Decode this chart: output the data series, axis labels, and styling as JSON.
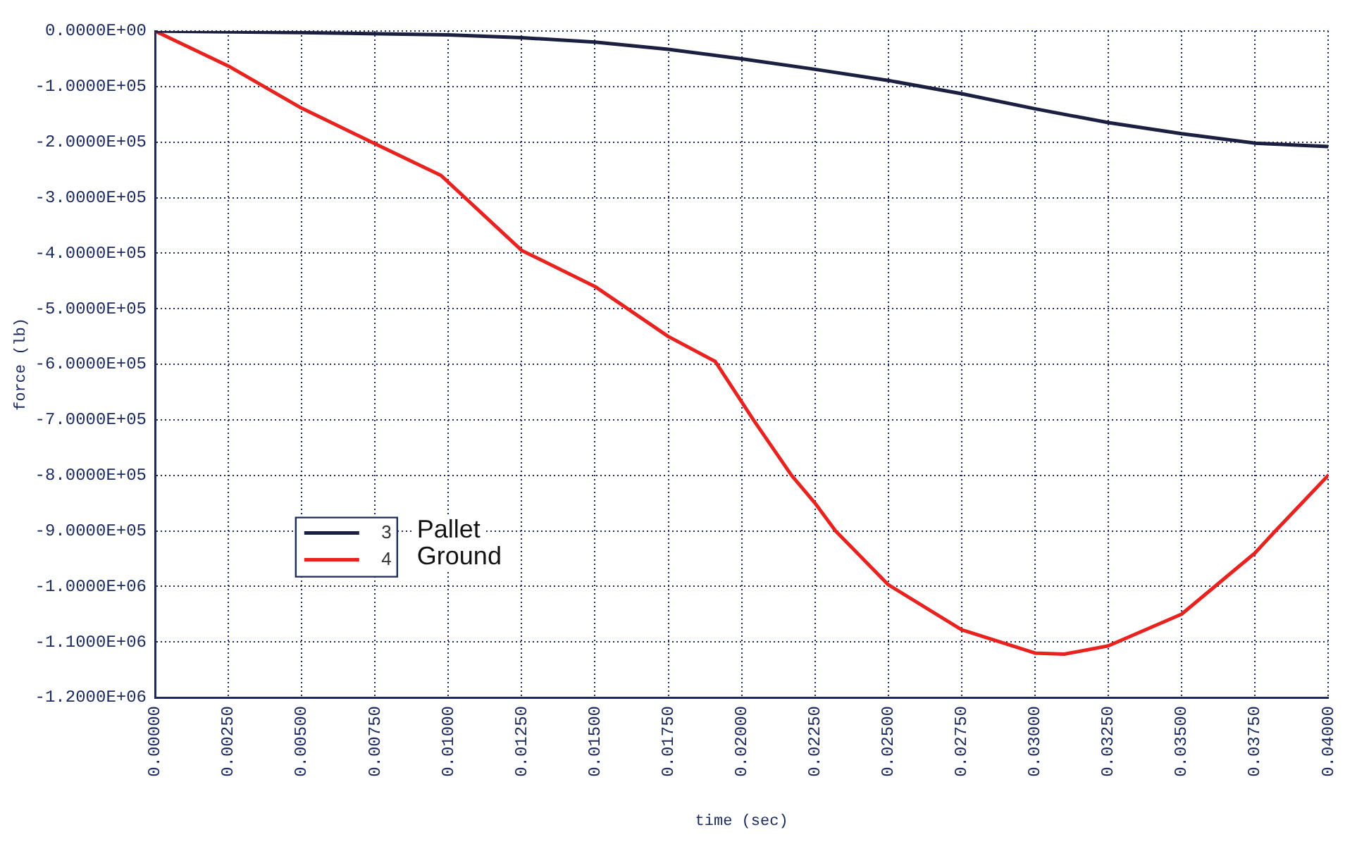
{
  "chart_data": {
    "type": "line",
    "xlabel": "time (sec)",
    "ylabel": "force (lb)",
    "xlim": [
      0,
      0.04
    ],
    "xticks": [
      {
        "value": 0,
        "label": "0.00000"
      },
      {
        "value": 0.0025,
        "label": "0.00250"
      },
      {
        "value": 0.005,
        "label": "0.00500"
      },
      {
        "value": 0.0075,
        "label": "0.00750"
      },
      {
        "value": 0.01,
        "label": "0.01000"
      },
      {
        "value": 0.0125,
        "label": "0.01250"
      },
      {
        "value": 0.015,
        "label": "0.01500"
      },
      {
        "value": 0.0175,
        "label": "0.01750"
      },
      {
        "value": 0.02,
        "label": "0.02000"
      },
      {
        "value": 0.0225,
        "label": "0.02250"
      },
      {
        "value": 0.025,
        "label": "0.02500"
      },
      {
        "value": 0.0275,
        "label": "0.02750"
      },
      {
        "value": 0.03,
        "label": "0.03000"
      },
      {
        "value": 0.0325,
        "label": "0.03250"
      },
      {
        "value": 0.035,
        "label": "0.03500"
      },
      {
        "value": 0.0375,
        "label": "0.03750"
      },
      {
        "value": 0.04,
        "label": "0.04000"
      }
    ],
    "ylim": [
      -1200000,
      0
    ],
    "yticks": [
      {
        "value": 0,
        "label": "0.0000E+00"
      },
      {
        "value": -100000,
        "label": "-1.0000E+05"
      },
      {
        "value": -200000,
        "label": "-2.0000E+05"
      },
      {
        "value": -300000,
        "label": "-3.0000E+05"
      },
      {
        "value": -400000,
        "label": "-4.0000E+05"
      },
      {
        "value": -500000,
        "label": "-5.0000E+05"
      },
      {
        "value": -600000,
        "label": "-6.0000E+05"
      },
      {
        "value": -700000,
        "label": "-7.0000E+05"
      },
      {
        "value": -800000,
        "label": "-8.0000E+05"
      },
      {
        "value": -900000,
        "label": "-9.0000E+05"
      },
      {
        "value": -1000000,
        "label": "-1.0000E+06"
      },
      {
        "value": -1100000,
        "label": "-1.1000E+06"
      },
      {
        "value": -1200000,
        "label": "-1.2000E+06"
      }
    ],
    "grid": true,
    "legend": "left",
    "marker": "none",
    "line_style": "solid",
    "annotations": [
      "Pallet",
      "Ground"
    ],
    "series": [
      {
        "name": "3",
        "color": "#1c2040",
        "x": [
          0,
          0.005,
          0.01,
          0.0125,
          0.015,
          0.0175,
          0.02,
          0.0225,
          0.025,
          0.0275,
          0.03,
          0.0325,
          0.035,
          0.0375,
          0.04
        ],
        "values": [
          0,
          -3000,
          -7000,
          -12000,
          -20000,
          -33000,
          -50000,
          -69000,
          -89000,
          -113000,
          -140000,
          -165000,
          -185000,
          -202000,
          -208000
        ]
      },
      {
        "name": "4",
        "color": "#e8231f",
        "x": [
          0,
          0.0025,
          0.005,
          0.0075,
          0.00975,
          0.0125,
          0.015,
          0.0175,
          0.0191,
          0.0204,
          0.0217,
          0.0225,
          0.0232,
          0.025,
          0.0275,
          0.03,
          0.031,
          0.0325,
          0.035,
          0.0375,
          0.0382,
          0.04
        ],
        "values": [
          0,
          -63000,
          -139000,
          -203000,
          -260000,
          -395000,
          -460000,
          -550000,
          -595000,
          -700000,
          -800000,
          -850000,
          -900000,
          -997000,
          -1078000,
          -1120000,
          -1122000,
          -1107000,
          -1050000,
          -940000,
          -900000,
          -800000
        ]
      }
    ]
  }
}
